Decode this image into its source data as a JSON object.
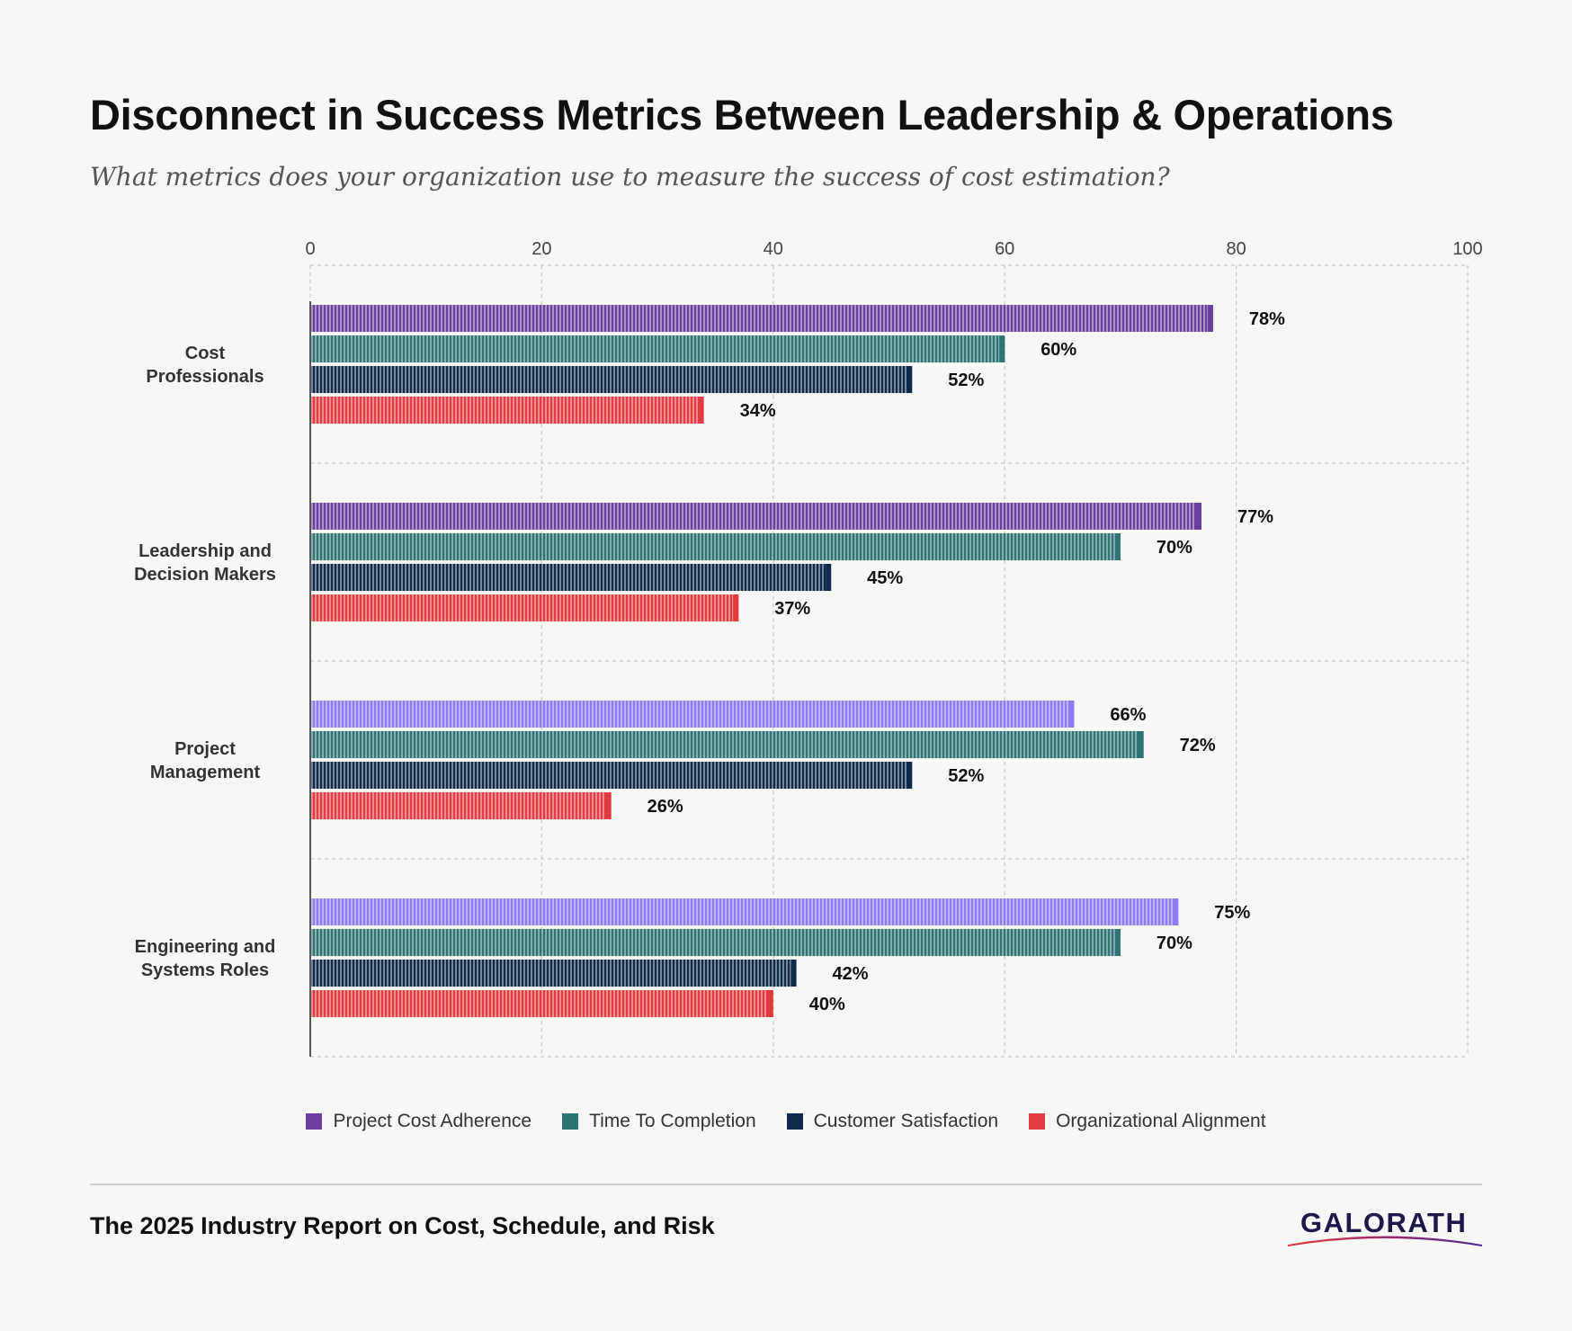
{
  "header": {
    "title": "Disconnect in Success Metrics Between Leadership & Operations",
    "subtitle": "What metrics does your organization use to measure the success of cost estimation?"
  },
  "chart_data": {
    "type": "bar",
    "orientation": "horizontal",
    "categories": [
      [
        "Cost",
        "Professionals"
      ],
      [
        "Leadership and",
        "Decision Makers"
      ],
      [
        "Project",
        "Management"
      ],
      [
        "Engineering and",
        "Systems Roles"
      ]
    ],
    "series": [
      {
        "name": "Project Cost Adherence",
        "color": "#6b3fa0",
        "values": [
          78,
          77,
          66,
          75
        ]
      },
      {
        "name": "Time To Completion",
        "color": "#2e7474",
        "values": [
          60,
          70,
          72,
          70
        ]
      },
      {
        "name": "Customer Satisfaction",
        "color": "#0f2a4a",
        "values": [
          52,
          45,
          52,
          42
        ]
      },
      {
        "name": "Organizational Alignment",
        "color": "#e03a3e",
        "values": [
          34,
          37,
          26,
          40
        ]
      }
    ],
    "bar_colors_override": {
      "Project Cost Adherence": [
        "#6b3fa0",
        "#6b3fa0",
        "#8f7cf0",
        "#8f7cf0"
      ]
    },
    "data_label_suffix": "%",
    "xlim": [
      0,
      100
    ],
    "xticks": [
      0,
      20,
      40,
      60,
      80,
      100
    ],
    "grid": true,
    "legend_position": "bottom"
  },
  "footer": {
    "report_title": "The 2025 Industry Report on Cost, Schedule, and Risk",
    "logo_text": "GALORATH"
  }
}
